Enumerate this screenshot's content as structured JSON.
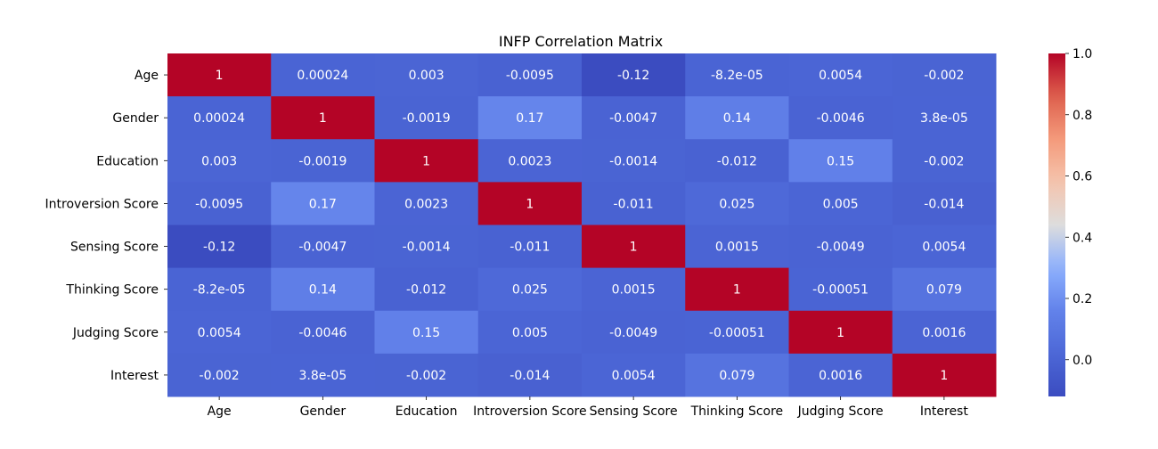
{
  "chart_data": {
    "type": "heatmap",
    "title": "INFP Correlation Matrix",
    "xlabel": "",
    "ylabel": "",
    "x_labels": [
      "Age",
      "Gender",
      "Education",
      "Introversion Score",
      "Sensing Score",
      "Thinking Score",
      "Judging Score",
      "Interest"
    ],
    "y_labels": [
      "Age",
      "Gender",
      "Education",
      "Introversion Score",
      "Sensing Score",
      "Thinking Score",
      "Judging Score",
      "Interest"
    ],
    "values": [
      [
        1,
        0.00024,
        0.003,
        -0.0095,
        -0.12,
        -8.2e-05,
        0.0054,
        -0.002
      ],
      [
        0.00024,
        1,
        -0.0019,
        0.17,
        -0.0047,
        0.14,
        -0.0046,
        3.8e-05
      ],
      [
        0.003,
        -0.0019,
        1,
        0.0023,
        -0.0014,
        -0.012,
        0.15,
        -0.002
      ],
      [
        -0.0095,
        0.17,
        0.0023,
        1,
        -0.011,
        0.025,
        0.005,
        -0.014
      ],
      [
        -0.12,
        -0.0047,
        -0.0014,
        -0.011,
        1,
        0.0015,
        -0.0049,
        0.0054
      ],
      [
        -8.2e-05,
        0.14,
        -0.012,
        0.025,
        0.0015,
        1,
        -0.00051,
        0.079
      ],
      [
        0.0054,
        -0.0046,
        0.15,
        0.005,
        -0.0049,
        -0.00051,
        1,
        0.0016
      ],
      [
        -0.002,
        3.8e-05,
        -0.002,
        -0.014,
        0.0054,
        0.079,
        0.0016,
        1
      ]
    ],
    "annotations": [
      [
        "1",
        "0.00024",
        "0.003",
        "-0.0095",
        "-0.12",
        "-8.2e-05",
        "0.0054",
        "-0.002"
      ],
      [
        "0.00024",
        "1",
        "-0.0019",
        "0.17",
        "-0.0047",
        "0.14",
        "-0.0046",
        "3.8e-05"
      ],
      [
        "0.003",
        "-0.0019",
        "1",
        "0.0023",
        "-0.0014",
        "-0.012",
        "0.15",
        "-0.002"
      ],
      [
        "-0.0095",
        "0.17",
        "0.0023",
        "1",
        "-0.011",
        "0.025",
        "0.005",
        "-0.014"
      ],
      [
        "-0.12",
        "-0.0047",
        "-0.0014",
        "-0.011",
        "1",
        "0.0015",
        "-0.0049",
        "0.0054"
      ],
      [
        "-8.2e-05",
        "0.14",
        "-0.012",
        "0.025",
        "0.0015",
        "1",
        "-0.00051",
        "0.079"
      ],
      [
        "0.0054",
        "-0.0046",
        "0.15",
        "0.005",
        "-0.0049",
        "-0.00051",
        "1",
        "0.0016"
      ],
      [
        "-0.002",
        "3.8e-05",
        "-0.002",
        "-0.014",
        "0.0054",
        "0.079",
        "0.0016",
        "1"
      ]
    ],
    "colormap": "coolwarm",
    "colorbar": {
      "min": -0.12,
      "max": 1.0,
      "ticks": [
        0.0,
        0.2,
        0.4,
        0.6,
        0.8,
        1.0
      ],
      "tick_labels": [
        "0.0",
        "0.2",
        "0.4",
        "0.6",
        "0.8",
        "1.0"
      ]
    },
    "grid": false,
    "legend": "right"
  }
}
